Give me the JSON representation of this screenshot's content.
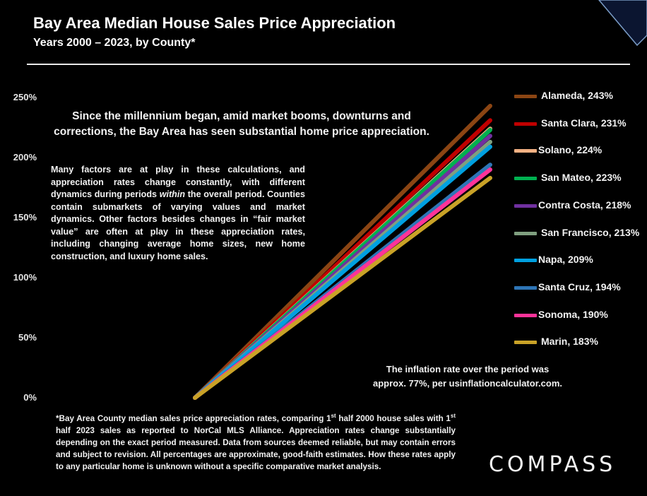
{
  "header": {
    "title": "Bay Area Median House Sales Price Appreciation",
    "subtitle": "Years 2000 – 2023, by County*"
  },
  "annotations": {
    "main": "Since the millennium began, amid market booms, downturns and corrections, the Bay Area has seen substantial home price appreciation.",
    "factors_part1": "Many factors are at play in these calculations, and appreciation rates change constantly, with different dynamics during periods ",
    "factors_emph": "within",
    "factors_part2": " the overall period. Counties contain submarkets of varying values and market dynamics. Other factors besides changes in “fair market value” are often at play in these appreciation rates, including  changing average home sizes, new home construction, and luxury home sales.",
    "inflation_line1": "The inflation rate over the period was",
    "inflation_line2": "approx. 77%, per usinflationcalculator.com."
  },
  "footnote": {
    "p1": "*Bay Area County median sales price appreciation rates, comparing 1",
    "sup1": "st",
    "p2": " half 2000 house sales with 1",
    "sup2": "st",
    "p3": " half 2023 sales as reported to NorCal MLS Alliance. Appreciation rates change substantially depending on the exact period measured. Data from sources deemed reliable, but may contain errors and subject to revision. All percentages are approximate, good-faith estimates. How these rates apply to any particular home is unknown without a specific comparative market analysis."
  },
  "logo": "COMPASS",
  "chart_data": {
    "type": "line",
    "title": "Bay Area Median House Sales Price Appreciation",
    "subtitle": "Years 2000 – 2023, by County*",
    "x": [
      "2000",
      "2023"
    ],
    "ylim": [
      0,
      250
    ],
    "ytick_labels": [
      "0%",
      "50%",
      "100%",
      "150%",
      "200%",
      "250%"
    ],
    "ytick_values": [
      0,
      50,
      100,
      150,
      200,
      250
    ],
    "grid": false,
    "legend_placement": "right",
    "series": [
      {
        "name": "Alameda",
        "values": [
          0,
          243
        ],
        "label": "Alameda, 243%",
        "color": "#8b4513"
      },
      {
        "name": "Santa Clara",
        "values": [
          0,
          231
        ],
        "label": "Santa Clara, 231%",
        "color": "#c00000"
      },
      {
        "name": "Solano",
        "values": [
          0,
          224
        ],
        "label": "Solano, 224%",
        "color": "#f4b183"
      },
      {
        "name": "San Mateo",
        "values": [
          0,
          223
        ],
        "label": "San Mateo, 223%",
        "color": "#00b050"
      },
      {
        "name": "Contra Costa",
        "values": [
          0,
          218
        ],
        "label": "Contra Costa, 218%",
        "color": "#7030a0"
      },
      {
        "name": "San Francisco",
        "values": [
          0,
          213
        ],
        "label": "San Francisco, 213%",
        "color": "#7f9f7f"
      },
      {
        "name": "Napa",
        "values": [
          0,
          209
        ],
        "label": "Napa, 209%",
        "color": "#00a0e0"
      },
      {
        "name": "Santa Cruz",
        "values": [
          0,
          194
        ],
        "label": "Santa Cruz, 194%",
        "color": "#2e75b6"
      },
      {
        "name": "Sonoma",
        "values": [
          0,
          190
        ],
        "label": "Sonoma, 190%",
        "color": "#ff3399"
      },
      {
        "name": "Marin",
        "values": [
          0,
          183
        ],
        "label": "Marin, 183%",
        "color": "#c9a227"
      }
    ]
  }
}
